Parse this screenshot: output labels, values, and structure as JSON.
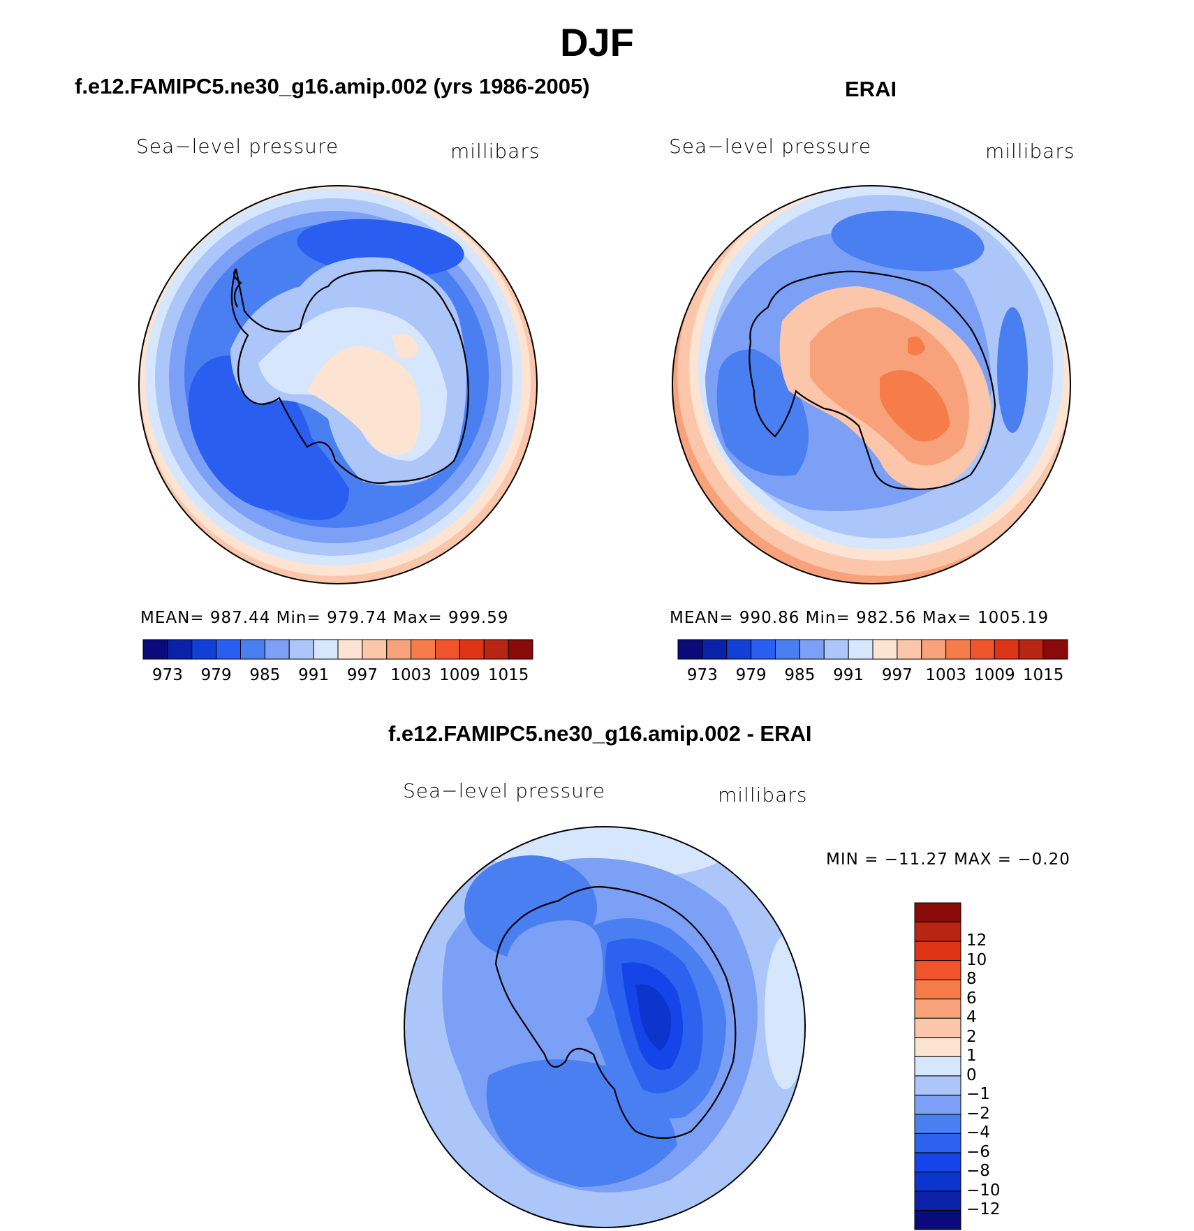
{
  "figure": {
    "title": "DJF"
  },
  "panels": {
    "model": {
      "title": "f.e12.FAMIPC5.ne30_g16.amip.002 (yrs 1986-2005)",
      "variable": "Sea−level pressure",
      "units": "millibars",
      "stats": "MEAN=  987.44    Min=  979.74    Max=  999.59"
    },
    "obs": {
      "title": "ERAI",
      "variable": "Sea−level pressure",
      "units": "millibars",
      "stats": "MEAN=  990.86    Min=  982.56    Max=  1005.19"
    },
    "diff": {
      "title": "f.e12.FAMIPC5.ne30_g16.amip.002 - ERAI",
      "variable": "Sea−level pressure",
      "units": "millibars",
      "stats": "MIN  =  −11.27  MAX  =    −0.20"
    }
  },
  "colorbars": {
    "abs": {
      "colors": [
        "#0a0a7a",
        "#0b22a8",
        "#1240d6",
        "#2a5ef0",
        "#4a7ff2",
        "#7ca0f5",
        "#acc6fa",
        "#d6e6fc",
        "#fde4d2",
        "#fbc6aa",
        "#f8a27c",
        "#f67c4a",
        "#f0542a",
        "#de3416",
        "#b82512",
        "#8a0a0a"
      ],
      "labels": [
        "973",
        "979",
        "985",
        "991",
        "997",
        "1003",
        "1009",
        "1015"
      ]
    },
    "diff": {
      "colors": [
        "#0a0a7a",
        "#0b22a8",
        "#0b35cc",
        "#1545e8",
        "#2d62ee",
        "#4a7ff2",
        "#7ca0f5",
        "#acc6fa",
        "#d6e6fc",
        "#fde4d2",
        "#fbc6aa",
        "#f8a27c",
        "#f67c4a",
        "#f0542a",
        "#de3416",
        "#b82512",
        "#8a0a0a"
      ],
      "labels": [
        "−12",
        "−10",
        "−8",
        "−6",
        "−4",
        "−2",
        "−1",
        "0",
        "1",
        "2",
        "4",
        "6",
        "8",
        "10",
        "12"
      ]
    }
  }
}
